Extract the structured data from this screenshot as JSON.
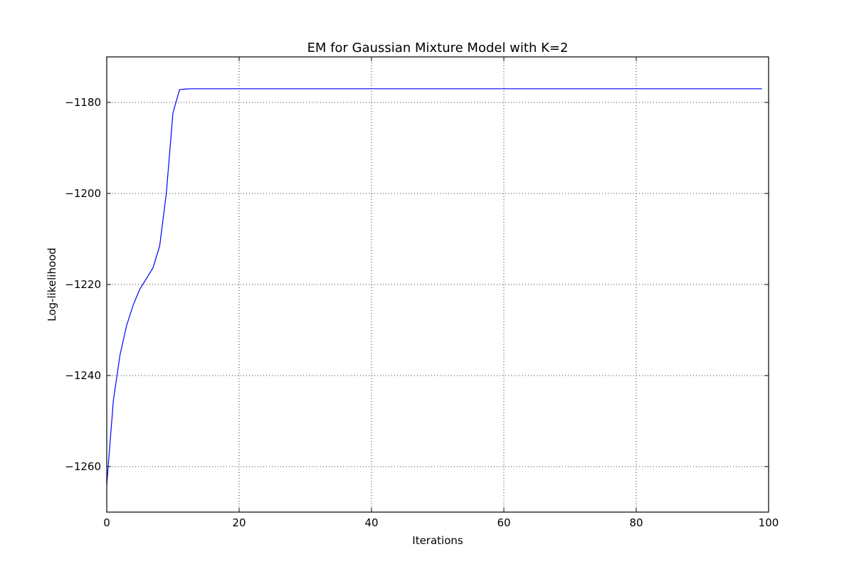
{
  "chart_data": {
    "type": "line",
    "title": "EM for Gaussian Mixture Model with K=2",
    "xlabel": "Iterations",
    "ylabel": "Log-likelihood",
    "xlim": [
      0,
      100
    ],
    "ylim": [
      -1270,
      -1170
    ],
    "xticks": [
      0,
      20,
      40,
      60,
      80,
      100
    ],
    "xtick_labels": [
      "0",
      "20",
      "40",
      "60",
      "80",
      "100"
    ],
    "yticks": [
      -1260,
      -1240,
      -1220,
      -1200,
      -1180
    ],
    "ytick_labels": [
      "−1260",
      "−1240",
      "−1220",
      "−1200",
      "−1180"
    ],
    "grid": true,
    "line_color": "#0000ff",
    "series": [
      {
        "x": [
          0,
          1,
          2,
          3,
          4,
          5,
          6,
          7,
          8,
          9,
          10,
          11,
          12,
          13,
          14,
          15,
          16,
          17,
          18,
          19,
          20,
          21,
          22,
          23,
          24,
          25,
          26,
          27,
          28,
          29,
          30,
          31,
          32,
          33,
          34,
          35,
          36,
          37,
          38,
          39,
          40,
          41,
          42,
          43,
          44,
          45,
          46,
          47,
          48,
          49,
          50,
          51,
          52,
          53,
          54,
          55,
          56,
          57,
          58,
          59,
          60,
          61,
          62,
          63,
          64,
          65,
          66,
          67,
          68,
          69,
          70,
          71,
          72,
          73,
          74,
          75,
          76,
          77,
          78,
          79,
          80,
          81,
          82,
          83,
          84,
          85,
          86,
          87,
          88,
          89,
          90,
          91,
          92,
          93,
          94,
          95,
          96,
          97,
          98,
          99
        ],
        "values": [
          -1264,
          -1245.5,
          -1235.5,
          -1229,
          -1224.5,
          -1221,
          -1218.7,
          -1216.3,
          -1211.5,
          -1200,
          -1182.3,
          -1177.2,
          -1177.05,
          -1177,
          -1177,
          -1177,
          -1177,
          -1177,
          -1177,
          -1177,
          -1177,
          -1177,
          -1177,
          -1177,
          -1177,
          -1177,
          -1177,
          -1177,
          -1177,
          -1177,
          -1177,
          -1177,
          -1177,
          -1177,
          -1177,
          -1177,
          -1177,
          -1177,
          -1177,
          -1177,
          -1177,
          -1177,
          -1177,
          -1177,
          -1177,
          -1177,
          -1177,
          -1177,
          -1177,
          -1177,
          -1177,
          -1177,
          -1177,
          -1177,
          -1177,
          -1177,
          -1177,
          -1177,
          -1177,
          -1177,
          -1177,
          -1177,
          -1177,
          -1177,
          -1177,
          -1177,
          -1177,
          -1177,
          -1177,
          -1177,
          -1177,
          -1177,
          -1177,
          -1177,
          -1177,
          -1177,
          -1177,
          -1177,
          -1177,
          -1177,
          -1177,
          -1177,
          -1177,
          -1177,
          -1177,
          -1177,
          -1177,
          -1177,
          -1177,
          -1177,
          -1177,
          -1177,
          -1177,
          -1177,
          -1177,
          -1177,
          -1177,
          -1177,
          -1177,
          -1177
        ]
      }
    ]
  }
}
